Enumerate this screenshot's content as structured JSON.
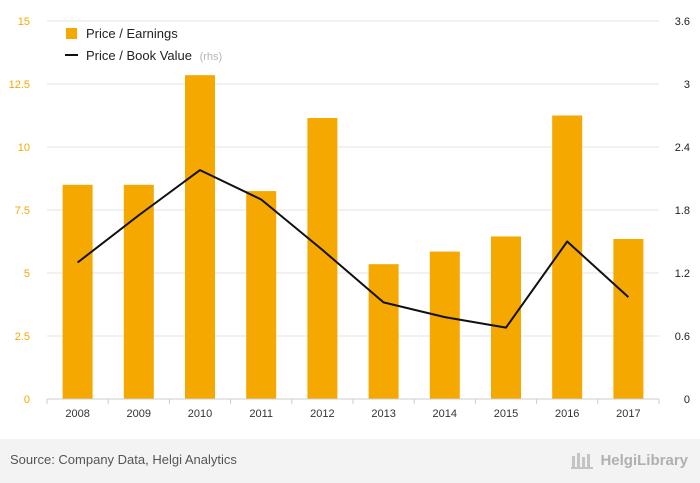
{
  "chart_data": {
    "type": "bar",
    "categories": [
      "2008",
      "2009",
      "2010",
      "2011",
      "2012",
      "2013",
      "2014",
      "2015",
      "2016",
      "2017"
    ],
    "series": [
      {
        "name": "Price / Earnings",
        "type": "bar",
        "axis": "left",
        "values": [
          8.5,
          8.5,
          12.85,
          8.25,
          11.15,
          5.35,
          5.85,
          6.45,
          11.25,
          6.35
        ]
      },
      {
        "name": "Price / Book Value",
        "name_suffix": "(rhs)",
        "type": "line",
        "axis": "right",
        "values": [
          1.3,
          1.75,
          2.18,
          1.9,
          1.42,
          0.92,
          0.78,
          0.68,
          1.5,
          0.97
        ]
      }
    ],
    "left_axis": {
      "ylim": [
        0,
        15
      ],
      "ticks": [
        "0",
        "2.5",
        "5",
        "7.5",
        "10",
        "12.5",
        "15"
      ]
    },
    "right_axis": {
      "ylim": [
        0,
        3.6
      ],
      "ticks": [
        "0",
        "0.6",
        "1.2",
        "1.8",
        "2.4",
        "3",
        "3.6"
      ]
    },
    "grid": true,
    "legend": "top-left",
    "colors": {
      "bar": "#f5a800",
      "line": "#111111",
      "left_axis": "#f5a800",
      "grid": "#e3e3e3"
    }
  },
  "footer": {
    "source": "Source: Company Data, Helgi Analytics",
    "brand": "HelgiLibrary"
  }
}
